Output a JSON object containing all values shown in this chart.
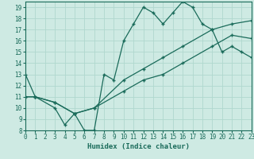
{
  "line1_x": [
    0,
    1,
    3,
    4,
    5,
    6,
    7,
    8,
    9,
    10,
    11,
    12,
    13,
    14,
    15,
    16,
    17,
    18,
    19,
    20,
    21,
    22,
    23
  ],
  "line1_y": [
    13,
    11,
    10,
    8.5,
    9.5,
    8,
    8,
    13,
    12.5,
    16,
    17.5,
    19,
    18.5,
    17.5,
    18.5,
    19.5,
    19,
    17.5,
    17,
    15,
    15.5,
    15,
    14.5
  ],
  "line2_x": [
    0,
    1,
    3,
    5,
    7,
    10,
    12,
    14,
    16,
    19,
    21,
    23
  ],
  "line2_y": [
    11,
    11,
    10.5,
    9.5,
    10,
    11.5,
    12.5,
    13.0,
    14.0,
    15.5,
    16.5,
    16.2
  ],
  "line3_x": [
    0,
    1,
    3,
    5,
    7,
    10,
    12,
    14,
    16,
    19,
    21,
    23
  ],
  "line3_y": [
    11,
    11,
    10.5,
    9.5,
    10,
    12.5,
    13.5,
    14.5,
    15.5,
    17.0,
    17.5,
    17.8
  ],
  "color": "#1a6b5a",
  "bg_color": "#ceeae3",
  "grid_color": "#b0d8ce",
  "xlabel": "Humidex (Indice chaleur)",
  "xlim": [
    0,
    23
  ],
  "ylim": [
    8,
    19.5
  ],
  "xticks": [
    0,
    1,
    2,
    3,
    4,
    5,
    6,
    7,
    8,
    9,
    10,
    11,
    12,
    13,
    14,
    15,
    16,
    17,
    18,
    19,
    20,
    21,
    22,
    23
  ],
  "yticks": [
    8,
    9,
    10,
    11,
    12,
    13,
    14,
    15,
    16,
    17,
    18,
    19
  ]
}
